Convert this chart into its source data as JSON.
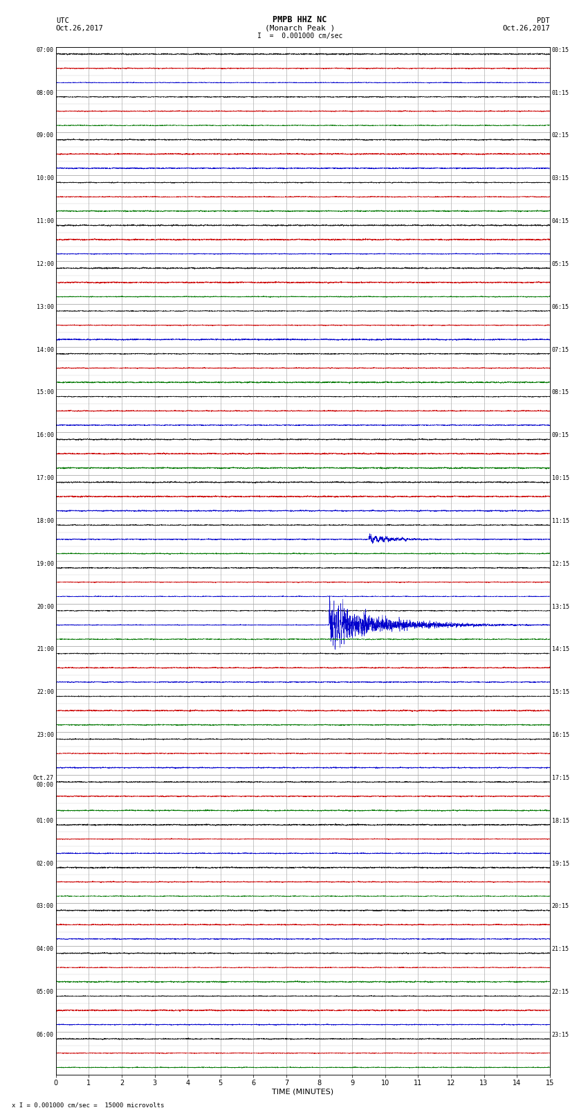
{
  "title_line1": "PMPB HHZ NC",
  "title_line2": "(Monarch Peak )",
  "scale_label": "I  =  0.001000 cm/sec",
  "utc_label": "UTC\nOct.26,2017",
  "pdt_label": "PDT\nOct.26,2017",
  "xlabel": "TIME (MINUTES)",
  "footer": "x I = 0.001000 cm/sec =  15000 microvolts",
  "bg_color": "#ffffff",
  "color_black": "#111111",
  "color_red": "#cc0000",
  "color_blue": "#0000cc",
  "color_green": "#007700",
  "grid_color": "#999999",
  "n_rows": 36,
  "minutes_per_row": 15,
  "traces_per_row": 3,
  "row_labels_utc": [
    "07:00",
    "08:00",
    "09:00",
    "10:00",
    "11:00",
    "12:00",
    "13:00",
    "14:00",
    "15:00",
    "16:00",
    "17:00",
    "18:00",
    "19:00",
    "20:00",
    "21:00",
    "22:00",
    "23:00",
    "Oct.27\n00:00",
    "01:00",
    "02:00",
    "03:00",
    "04:00",
    "05:00",
    "06:00"
  ],
  "row_labels_pdt": [
    "00:15",
    "01:15",
    "02:15",
    "03:15",
    "04:15",
    "05:15",
    "06:15",
    "07:15",
    "08:15",
    "09:15",
    "10:15",
    "11:15",
    "12:15",
    "13:15",
    "14:15",
    "15:15",
    "16:15",
    "17:15",
    "18:15",
    "19:15",
    "20:15",
    "21:15",
    "22:15",
    "23:15"
  ],
  "event1_hour": 11,
  "event1_minute": 9.5,
  "event1_amplitude": 0.28,
  "event1_decay": 1.2,
  "event2_hour": 13,
  "event2_minute": 8.3,
  "event2_amplitude": 0.65,
  "event2_decay": 0.6,
  "noise_base": 0.018,
  "seed": 12345
}
